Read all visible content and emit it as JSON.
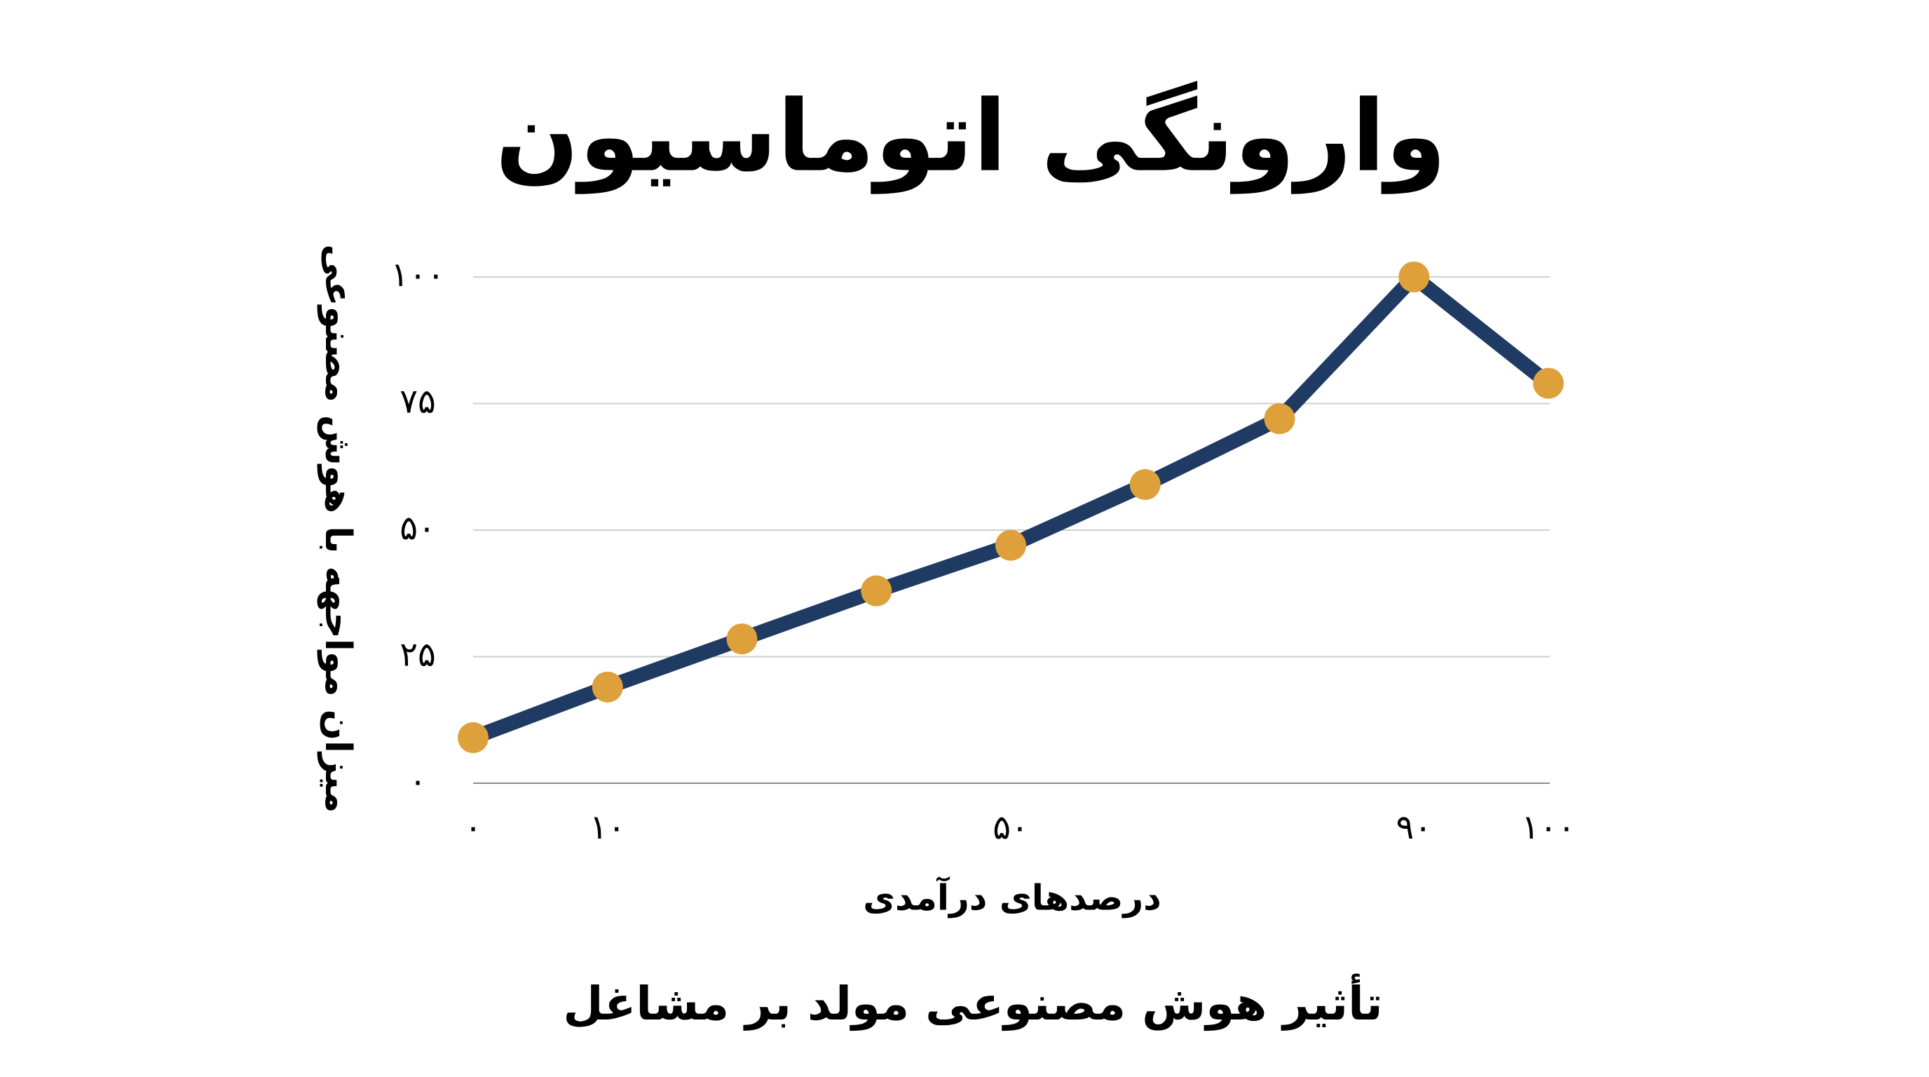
{
  "chart_data": {
    "type": "line",
    "title": "وارونگی اتوماسیون",
    "caption": "تأثیر هوش مصنوعی مولد بر مشاغل",
    "xlabel": "درصدهای درآمدی",
    "ylabel": "میزان مواجهه با هوش مصنوعی",
    "categories": [
      "۰",
      "۱۰",
      null,
      null,
      "۵۰",
      null,
      null,
      "۹۰",
      "۱۰۰"
    ],
    "series": [
      {
        "values": [
          9,
          19,
          28.5,
          38,
          47,
          59,
          72,
          100,
          79
        ],
        "color": "#1f3a63",
        "marker_color": "#dea03a"
      }
    ],
    "ylim": [
      0,
      100
    ],
    "yticks": [
      {
        "value": 0,
        "label": "۰"
      },
      {
        "value": 25,
        "label": "۲۵"
      },
      {
        "value": 50,
        "label": "۵۰"
      },
      {
        "value": 75,
        "label": "۷۵"
      },
      {
        "value": 100,
        "label": "۱۰۰"
      }
    ],
    "grid": true
  }
}
